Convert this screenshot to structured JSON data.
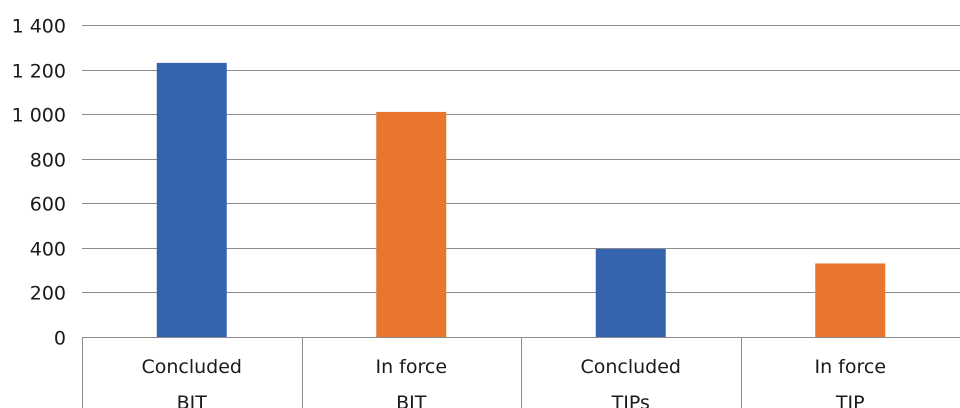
{
  "chart_data": {
    "type": "bar",
    "categories": [
      [
        "Concluded",
        "BIT"
      ],
      [
        "In force",
        "BIT"
      ],
      [
        "Concluded",
        "TIPs"
      ],
      [
        "In force",
        "TIP"
      ]
    ],
    "values": [
      1230,
      1010,
      395,
      330
    ],
    "bar_colors": [
      "#3563ae",
      "#e8762d",
      "#3563ae",
      "#e8762d"
    ],
    "y_ticks": [
      {
        "value": 0,
        "label": "0"
      },
      {
        "value": 200,
        "label": "200"
      },
      {
        "value": 400,
        "label": "400"
      },
      {
        "value": 600,
        "label": "600"
      },
      {
        "value": 800,
        "label": "800"
      },
      {
        "value": 1000,
        "label": "1 000"
      },
      {
        "value": 1200,
        "label": "1 200"
      },
      {
        "value": 1400,
        "label": "1 400"
      }
    ],
    "ylim": [
      0,
      1400
    ],
    "grid": true,
    "legend": "none",
    "title": "",
    "xlabel": "",
    "ylabel": "",
    "grid_color": "#8c8c8c"
  }
}
